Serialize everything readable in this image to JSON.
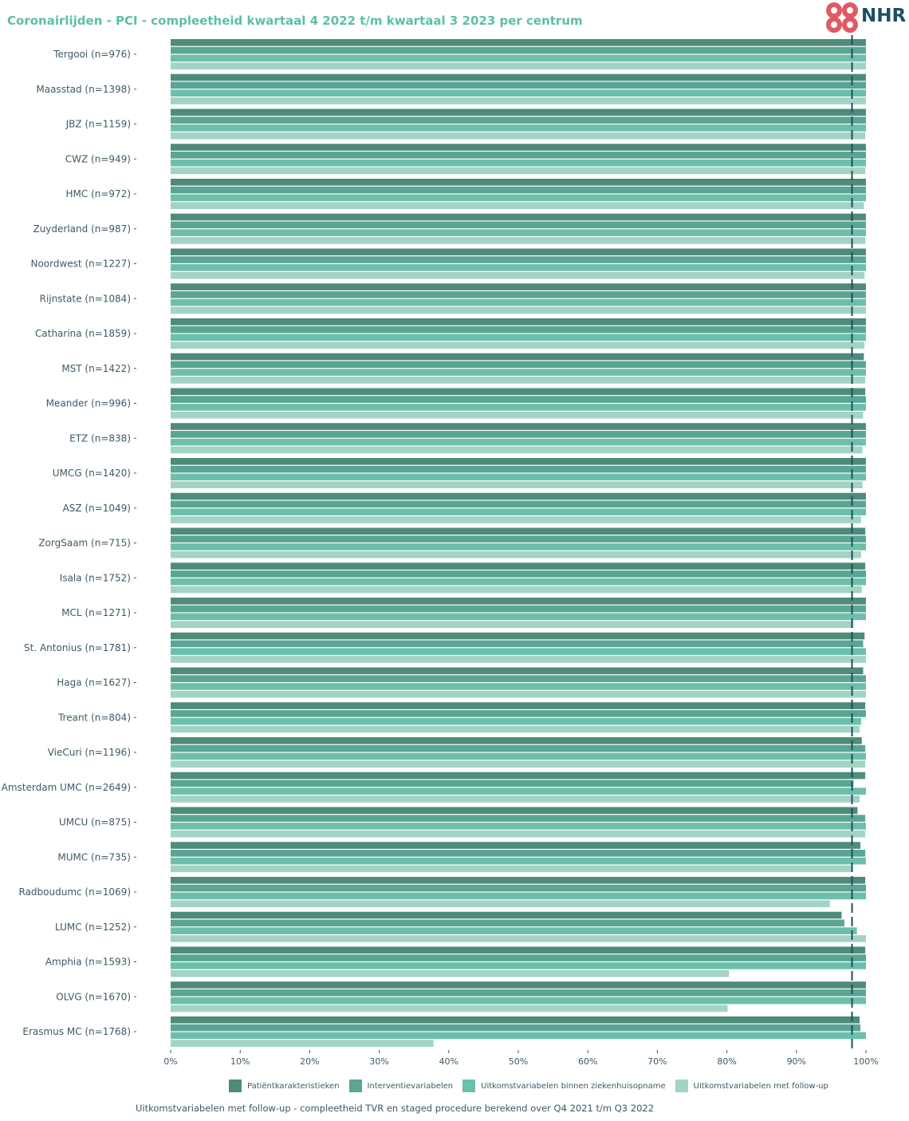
{
  "title": "Coronairlijden - PCI - compleetheid kwartaal 4 2022 t/m kwartaal 3 2023 per centrum",
  "logo": {
    "text": "NHR",
    "cross_color": "#e05a64",
    "text_color": "#1c4f63"
  },
  "footnote": "Uitkomstvariabelen met follow-up - compleetheid TVR en staged procedure berekend over Q4 2021 t/m Q3 2022",
  "chart_data": {
    "type": "bar",
    "orientation": "horizontal",
    "title": "Coronairlijden - PCI - compleetheid kwartaal 4 2022 t/m kwartaal 3 2023 per centrum",
    "xlabel": "",
    "ylabel": "",
    "xlim": [
      0,
      100
    ],
    "x_ticks": [
      "0%",
      "10%",
      "20%",
      "30%",
      "40%",
      "50%",
      "60%",
      "70%",
      "80%",
      "90%",
      "100%"
    ],
    "reference_line": {
      "value": 98,
      "style": "dashed",
      "color": "#1c4f63"
    },
    "grid": false,
    "legend_position": "bottom",
    "categories": [
      "Tergooi (n=976)",
      "Maasstad (n=1398)",
      "JBZ (n=1159)",
      "CWZ (n=949)",
      "HMC (n=972)",
      "Zuyderland (n=987)",
      "Noordwest (n=1227)",
      "Rijnstate (n=1084)",
      "Catharina (n=1859)",
      "MST (n=1422)",
      "Meander (n=996)",
      "ETZ (n=838)",
      "UMCG (n=1420)",
      "ASZ (n=1049)",
      "ZorgSaam (n=715)",
      "Isala (n=1752)",
      "MCL (n=1271)",
      "St. Antonius (n=1781)",
      "Haga (n=1627)",
      "Treant (n=804)",
      "VieCuri (n=1196)",
      "Amsterdam UMC (n=2649)",
      "UMCU (n=875)",
      "MUMC (n=735)",
      "Radboudumc (n=1069)",
      "LUMC (n=1252)",
      "Amphia (n=1593)",
      "OLVG (n=1670)",
      "Erasmus MC (n=1768)"
    ],
    "series": [
      {
        "name": "Patiëntkarakteristieken",
        "color": "#4e8b7a",
        "values": [
          100,
          100,
          100,
          100,
          100,
          100,
          100,
          100,
          100,
          99.7,
          99.9,
          100,
          100,
          100,
          99.9,
          99.9,
          100,
          99.8,
          99.6,
          99.9,
          99.4,
          99.9,
          98.8,
          99.2,
          99.9,
          96.5,
          99.9,
          100,
          99.1
        ]
      },
      {
        "name": "Interventievariabelen",
        "color": "#5aa593",
        "values": [
          100,
          100,
          100,
          100,
          100,
          100,
          100,
          100,
          100,
          100,
          100,
          100,
          100,
          100,
          100,
          100,
          100,
          99.6,
          100,
          100,
          99.9,
          98.2,
          99.9,
          99.9,
          100,
          96.9,
          100,
          100,
          99.2
        ]
      },
      {
        "name": "Uitkomstvariabelen binnen ziekenhuisopname",
        "color": "#6cbfab",
        "values": [
          100,
          100,
          100,
          100,
          100,
          100,
          100,
          100,
          100,
          100,
          100,
          100,
          100,
          100,
          100,
          100,
          100,
          100,
          100,
          99.3,
          100,
          100,
          100,
          100,
          100,
          98.7,
          100,
          100,
          100
        ]
      },
      {
        "name": "Uitkomstvariabelen met follow-up",
        "color": "#a2d3c4",
        "values": [
          100,
          100,
          99.9,
          99.9,
          99.7,
          99.9,
          99.8,
          100,
          99.8,
          99.9,
          99.6,
          99.5,
          99.5,
          99.3,
          99.3,
          99.4,
          98.2,
          100,
          100,
          99.1,
          99.9,
          99.1,
          99.9,
          97.9,
          94.8,
          100,
          80.3,
          80.1,
          37.8
        ]
      }
    ]
  }
}
